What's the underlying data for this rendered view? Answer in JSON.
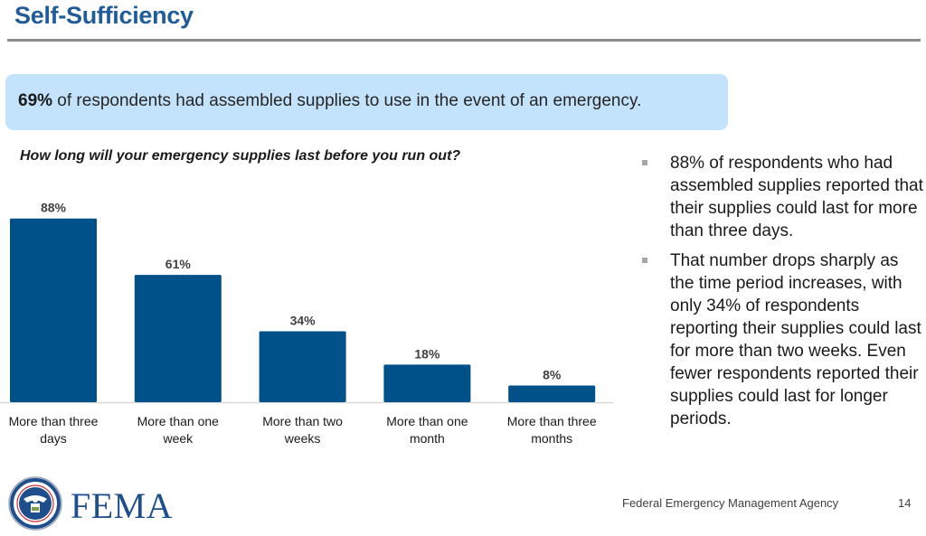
{
  "header": {
    "title": "Self-Sufficiency"
  },
  "callout": {
    "highlight": "69%",
    "text": " of respondents had assembled supplies to use in the event of an emergency."
  },
  "bullets": [
    "88% of respondents who had assembled supplies reported that their supplies could last for more than three days.",
    "That number drops sharply as the time period increases, with only 34% of respondents reporting their supplies could last for more than two weeks. Even fewer respondents reported their supplies could last for longer periods."
  ],
  "footer": {
    "logo_text": "FEMA",
    "agency": "Federal Emergency Management Agency",
    "page_number": "14"
  },
  "colors": {
    "title": "#1f5c99",
    "bar": "#00508a",
    "callout_bg": "#c3e2fb",
    "baseline": "#d9d9d9"
  },
  "chart_data": {
    "type": "bar",
    "title": "How long will your emergency supplies last before you run out?",
    "categories": [
      [
        "More than three",
        "days"
      ],
      [
        "More than one",
        "week"
      ],
      [
        "More than two",
        "weeks"
      ],
      [
        "More than one",
        "month"
      ],
      [
        "More than three",
        "months"
      ]
    ],
    "values": [
      88,
      61,
      34,
      18,
      8
    ],
    "value_labels": [
      "88%",
      "61%",
      "34%",
      "18%",
      "8%"
    ],
    "xlabel": "",
    "ylabel": "",
    "ylim": [
      0,
      100
    ],
    "grid": false,
    "legend": "none"
  }
}
